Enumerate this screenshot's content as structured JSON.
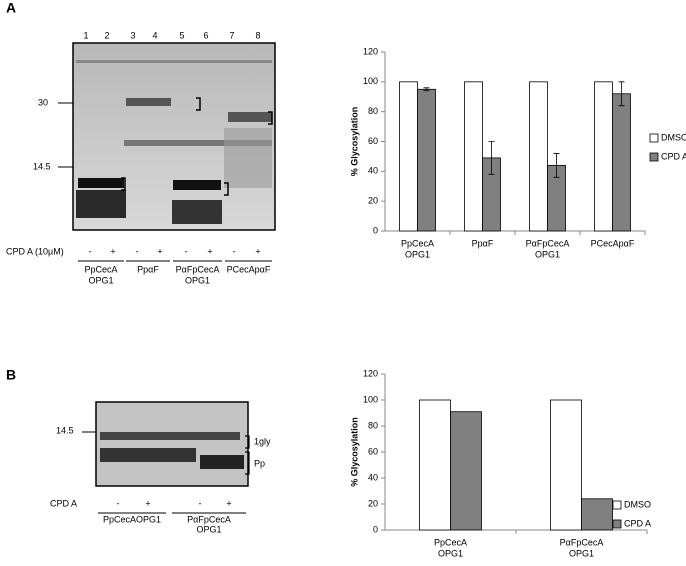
{
  "panel_labels": [
    "A",
    "B"
  ],
  "gel_a": {
    "lanes": [
      "1",
      "2",
      "3",
      "4",
      "5",
      "6",
      "7",
      "8"
    ],
    "markers": [
      "30",
      "14.5"
    ],
    "treatment": "CPD A (10µM)",
    "signs": [
      "-",
      "+",
      "-",
      "+",
      "-",
      "+",
      "-",
      "+"
    ],
    "groups": [
      {
        "name": "PpCecA",
        "sub": "OPG1"
      },
      {
        "name": "PpαF"
      },
      {
        "name": "PαFpCecA",
        "sub": "OPG1"
      },
      {
        "name": "PCecApαF"
      }
    ]
  },
  "gel_b": {
    "markers": [
      "14.5"
    ],
    "bands": [
      "1gly",
      "Pp"
    ],
    "treatment": "CPD A",
    "signs": [
      "-",
      "+",
      "-",
      "+"
    ],
    "groups": [
      {
        "name": "PpCecAOPG1"
      },
      {
        "name": "PαFpCecA",
        "sub": "OPG1"
      }
    ]
  },
  "chart_data": [
    {
      "type": "bar",
      "y_label": "% Glycosylation",
      "categories": [
        "PpCecA",
        "PpαF",
        "PαFpCecA",
        "PCecApαF"
      ],
      "category_sublabels": [
        "OPG1",
        null,
        "OPG1",
        null
      ],
      "series": [
        {
          "name": "DMSO",
          "color": "#ffffff",
          "values": [
            100,
            100,
            100,
            100
          ]
        },
        {
          "name": "CPD A",
          "color": "#808080",
          "values": [
            95,
            49,
            44,
            92
          ],
          "errors": [
            1,
            11,
            8,
            8
          ]
        }
      ],
      "ylim": [
        0,
        120
      ],
      "yticks": [
        0,
        20,
        40,
        60,
        80,
        100,
        120
      ],
      "legend": "right"
    },
    {
      "type": "bar",
      "y_label": "% Glycosylation",
      "categories": [
        "PpCecA",
        "PαFpCecA"
      ],
      "category_sublabels": [
        "OPG1",
        "OPG1"
      ],
      "series": [
        {
          "name": "DMSO",
          "color": "#ffffff",
          "values": [
            100,
            100
          ]
        },
        {
          "name": "CPD A",
          "color": "#808080",
          "values": [
            91,
            24
          ]
        }
      ],
      "ylim": [
        0,
        120
      ],
      "yticks": [
        0,
        20,
        40,
        60,
        80,
        100,
        120
      ],
      "legend": "right"
    }
  ]
}
